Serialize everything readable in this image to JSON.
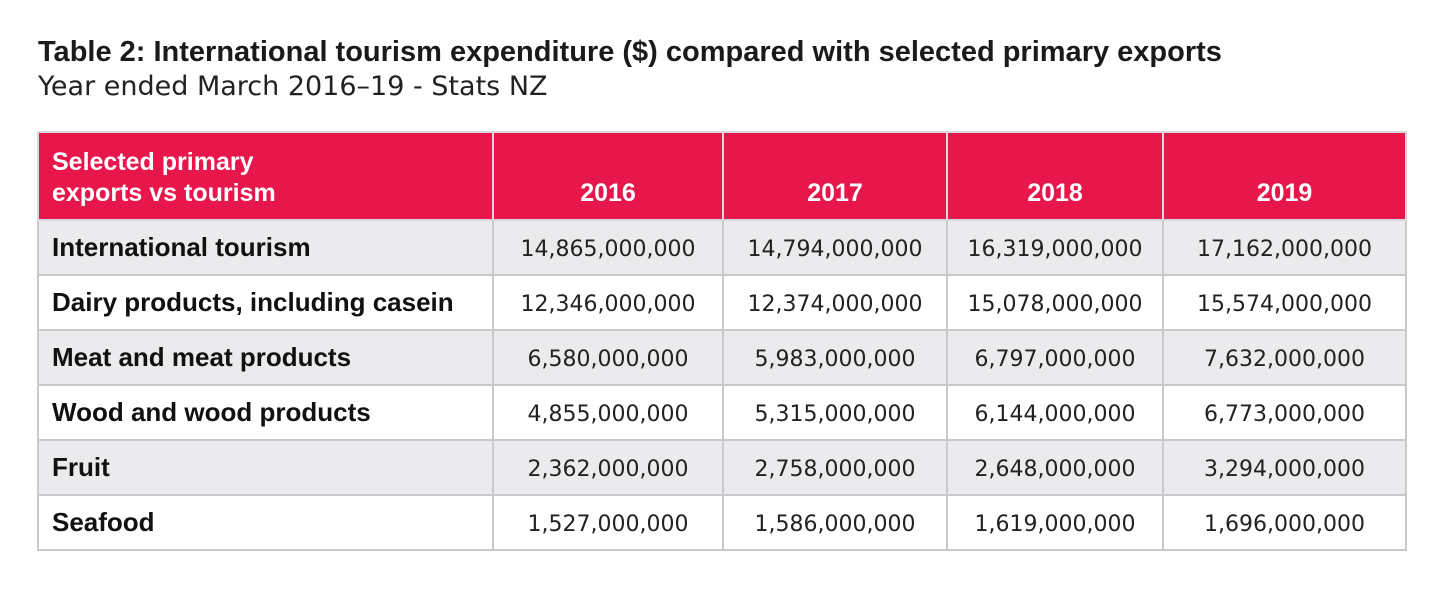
{
  "header": {
    "title": "Table 2: International tourism expenditure ($) compared with selected primary exports",
    "subtitle": "Year ended March 2016–19 - Stats NZ"
  },
  "colors": {
    "header_bg": "#e8174b",
    "row_shade": "#ebebed",
    "border": "#c9c9cc"
  },
  "chart_data": {
    "type": "table",
    "title": "Table 2: International tourism expenditure ($) compared with selected primary exports",
    "subtitle": "Year ended March 2016–19 - Stats NZ",
    "row_header": "Selected primary\nexports vs tourism",
    "columns": [
      "2016",
      "2017",
      "2018",
      "2019"
    ],
    "rows": [
      {
        "label": "International tourism",
        "values": [
          "14,865,000,000",
          "14,794,000,000",
          "16,319,000,000",
          "17,162,000,000"
        ]
      },
      {
        "label": "Dairy products, including casein",
        "values": [
          "12,346,000,000",
          "12,374,000,000",
          "15,078,000,000",
          "15,574,000,000"
        ]
      },
      {
        "label": "Meat and meat products",
        "values": [
          "6,580,000,000",
          "5,983,000,000",
          "6,797,000,000",
          "7,632,000,000"
        ]
      },
      {
        "label": "Wood and wood products",
        "values": [
          "4,855,000,000",
          "5,315,000,000",
          "6,144,000,000",
          "6,773,000,000"
        ]
      },
      {
        "label": "Fruit",
        "values": [
          "2,362,000,000",
          "2,758,000,000",
          "2,648,000,000",
          "3,294,000,000"
        ]
      },
      {
        "label": "Seafood",
        "values": [
          "1,527,000,000",
          "1,586,000,000",
          "1,619,000,000",
          "1,696,000,000"
        ]
      }
    ]
  }
}
